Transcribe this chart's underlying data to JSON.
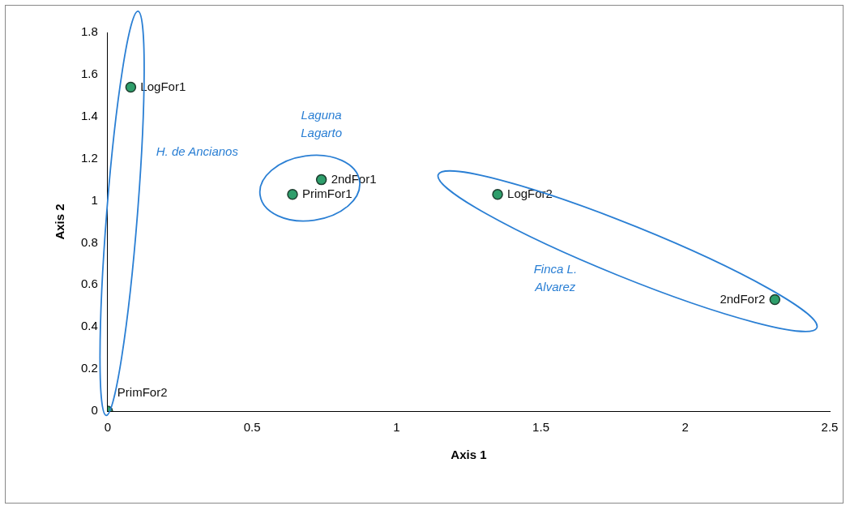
{
  "chart_data": {
    "type": "scatter",
    "xlabel": "Axis 1",
    "ylabel": "Axis 2",
    "x": [
      0.08,
      0.74,
      0.64,
      1.35,
      2.31,
      0
    ],
    "series": [
      {
        "color": "#2e9e6b",
        "values": [
          1.54,
          1.1,
          1.03,
          1.03,
          0.53,
          0
        ],
        "value_labels": [
          "LogFor1",
          "2ndFor1",
          "PrimFor1",
          "LogFor2",
          "2ndFor2",
          "PrimFor2"
        ]
      }
    ],
    "xlim": [
      0,
      2.5
    ],
    "xticks": [
      0,
      0.5,
      1,
      1.5,
      2,
      2.5
    ],
    "ylim": [
      0,
      1.8
    ],
    "yticks": [
      0,
      0.2,
      0.4,
      0.6,
      0.8,
      1,
      1.2,
      1.4,
      1.6,
      1.8
    ],
    "grid": false,
    "legend": false,
    "marker": "circle",
    "annotations": [
      "H. de Ancianos",
      "Laguna\nLagarto",
      "Finca L.\nAlvarez"
    ]
  }
}
